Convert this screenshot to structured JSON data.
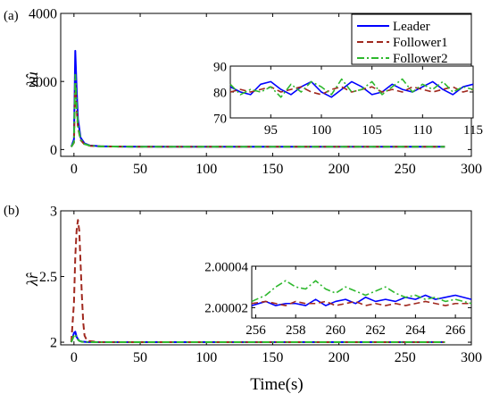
{
  "colors": {
    "leader": "#0000ff",
    "follower1": "#a0281e",
    "follower2": "#2eb82e",
    "axis": "#000000"
  },
  "chart_data": [
    {
      "panel_label": "(a)",
      "type": "line",
      "ylabel": "λ̂u",
      "xlim": [
        -10,
        300
      ],
      "ylim": [
        -200,
        4000
      ],
      "xticks": [
        0,
        50,
        100,
        150,
        200,
        250,
        300
      ],
      "yticks": [
        0,
        2000,
        4000
      ],
      "legend": {
        "placement": "top-right",
        "entries": [
          "Leader",
          "Follower1",
          "Follower2"
        ]
      },
      "series": [
        {
          "name": "Leader",
          "style": "solid",
          "x": [
            -2,
            0,
            1,
            2,
            3,
            5,
            8,
            12,
            20,
            40,
            80,
            150,
            200,
            280
          ],
          "y": [
            80,
            300,
            2900,
            1800,
            900,
            350,
            180,
            120,
            95,
            85,
            82,
            82,
            82,
            82
          ]
        },
        {
          "name": "Follower1",
          "style": "dashed",
          "x": [
            -2,
            0,
            1,
            2,
            3,
            5,
            8,
            12,
            20,
            40,
            80,
            150,
            200,
            280
          ],
          "y": [
            80,
            200,
            1900,
            1200,
            650,
            280,
            150,
            110,
            92,
            84,
            82,
            82,
            82,
            82
          ]
        },
        {
          "name": "Follower2",
          "style": "dashdot",
          "x": [
            -2,
            0,
            1,
            2,
            3,
            5,
            8,
            12,
            20,
            40,
            80,
            150,
            200,
            280
          ],
          "y": [
            80,
            220,
            2200,
            1300,
            700,
            300,
            160,
            115,
            93,
            84,
            82,
            82,
            82,
            82
          ]
        }
      ],
      "inset": {
        "xlim": [
          91,
          115
        ],
        "ylim": [
          70,
          90
        ],
        "xticks": [
          95,
          100,
          105,
          110,
          115
        ],
        "yticks": [
          70,
          80,
          90
        ],
        "series": [
          {
            "name": "Leader",
            "x": [
              91,
              92,
              93,
              94,
              95,
              96,
              97,
              98,
              99,
              100,
              101,
              102,
              103,
              104,
              105,
              106,
              107,
              108,
              109,
              110,
              111,
              112,
              113,
              114,
              115
            ],
            "y": [
              82,
              80,
              79,
              83,
              84,
              81,
              79,
              82,
              84,
              80,
              78,
              81,
              84,
              82,
              79,
              80,
              83,
              81,
              80,
              82,
              84,
              81,
              79,
              82,
              83
            ]
          },
          {
            "name": "Follower1",
            "x": [
              91,
              92,
              93,
              94,
              95,
              96,
              97,
              98,
              99,
              100,
              101,
              102,
              103,
              104,
              105,
              106,
              107,
              108,
              109,
              110,
              111,
              112,
              113,
              114,
              115
            ],
            "y": [
              80,
              81,
              80,
              81,
              82,
              80,
              81,
              82,
              80,
              79,
              81,
              82,
              80,
              81,
              82,
              80,
              81,
              80,
              82,
              81,
              80,
              81,
              82,
              80,
              81
            ]
          },
          {
            "name": "Follower2",
            "x": [
              91,
              92,
              93,
              94,
              95,
              96,
              97,
              98,
              99,
              100,
              101,
              102,
              103,
              104,
              105,
              106,
              107,
              108,
              109,
              110,
              111,
              112,
              113,
              114,
              115
            ],
            "y": [
              83,
              79,
              81,
              80,
              82,
              78,
              83,
              80,
              84,
              82,
              79,
              85,
              80,
              81,
              84,
              79,
              82,
              85,
              80,
              83,
              81,
              84,
              80,
              82,
              81
            ]
          }
        ]
      }
    },
    {
      "panel_label": "(b)",
      "type": "line",
      "ylabel": "λ̂r",
      "xlabel": "Time(s)",
      "xlim": [
        -10,
        300
      ],
      "ylim": [
        1.98,
        3
      ],
      "xticks": [
        0,
        50,
        100,
        150,
        200,
        250,
        300
      ],
      "yticks": [
        2,
        2.5,
        3
      ],
      "series": [
        {
          "name": "Leader",
          "style": "solid",
          "x": [
            -2,
            0,
            1,
            2,
            4,
            6,
            10,
            20,
            50,
            150,
            280
          ],
          "y": [
            2.0,
            2.07,
            2.08,
            2.04,
            2.01,
            2.005,
            2.001,
            2.0,
            2.0,
            2.0,
            2.0
          ]
        },
        {
          "name": "Follower1",
          "style": "dashed",
          "x": [
            -2,
            0,
            1,
            2,
            3,
            4,
            5,
            6,
            7,
            8,
            10,
            20,
            50,
            150,
            280
          ],
          "y": [
            2.0,
            2.3,
            2.65,
            2.85,
            2.93,
            2.85,
            2.6,
            2.35,
            2.15,
            2.05,
            2.01,
            2.0,
            2.0,
            2.0,
            2.0
          ]
        },
        {
          "name": "Follower2",
          "style": "dashdot",
          "x": [
            -2,
            0,
            1,
            2,
            4,
            6,
            10,
            20,
            50,
            150,
            280
          ],
          "y": [
            2.0,
            2.05,
            2.06,
            2.03,
            2.01,
            2.003,
            2.001,
            2.0,
            2.0,
            2.0,
            2.0
          ]
        }
      ],
      "inset": {
        "xlim": [
          255.8,
          266.8
        ],
        "ylim": [
          2.000015,
          2.00004
        ],
        "xticks": [
          256,
          258,
          260,
          262,
          264,
          266
        ],
        "yticks": [
          2.00002,
          2.00004
        ],
        "series": [
          {
            "name": "Leader",
            "x": [
              255.8,
              256.5,
              257,
              257.5,
              258,
              258.5,
              259,
              259.5,
              260,
              260.5,
              261,
              261.5,
              262,
              262.5,
              263,
              263.5,
              264,
              264.5,
              265,
              265.5,
              266,
              266.8
            ],
            "y": [
              2.000021,
              2.000023,
              2.000021,
              2.000022,
              2.000022,
              2.000021,
              2.000024,
              2.000021,
              2.000023,
              2.000024,
              2.000022,
              2.000025,
              2.000023,
              2.000024,
              2.000023,
              2.000025,
              2.000024,
              2.000026,
              2.000024,
              2.000025,
              2.000026,
              2.000024
            ]
          },
          {
            "name": "Follower1",
            "x": [
              255.8,
              256.5,
              257,
              257.5,
              258,
              258.5,
              259,
              259.5,
              260,
              260.5,
              261,
              261.5,
              262,
              262.5,
              263,
              263.5,
              264,
              264.5,
              265,
              265.5,
              266,
              266.8
            ],
            "y": [
              2.000022,
              2.000023,
              2.000022,
              2.000021,
              2.000023,
              2.000022,
              2.000022,
              2.000023,
              2.000021,
              2.000022,
              2.000023,
              2.000021,
              2.000022,
              2.000021,
              2.000022,
              2.000021,
              2.000022,
              2.000023,
              2.000022,
              2.000021,
              2.000022,
              2.000022
            ]
          },
          {
            "name": "Follower2",
            "x": [
              255.8,
              256.5,
              257,
              257.5,
              258,
              258.5,
              259,
              259.5,
              260,
              260.5,
              261,
              261.5,
              262,
              262.5,
              263,
              263.5,
              264,
              264.5,
              265,
              265.5,
              266,
              266.8
            ],
            "y": [
              2.000023,
              2.000026,
              2.00003,
              2.000033,
              2.00003,
              2.000029,
              2.000033,
              2.000029,
              2.000027,
              2.00003,
              2.000028,
              2.000026,
              2.000028,
              2.00003,
              2.000027,
              2.000025,
              2.000026,
              2.000024,
              2.000025,
              2.000023,
              2.000024,
              2.000022
            ]
          }
        ]
      }
    }
  ]
}
